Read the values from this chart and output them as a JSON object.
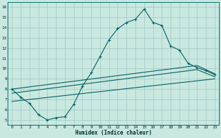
{
  "xlabel": "Humidex (Indice chaleur)",
  "bg_color": "#c8e8e0",
  "line_color": "#006060",
  "grid_color": "#a8ccc8",
  "xlim": [
    -0.5,
    23.5
  ],
  "ylim": [
    4.5,
    16.5
  ],
  "xticks": [
    0,
    1,
    2,
    3,
    4,
    5,
    6,
    7,
    8,
    9,
    10,
    11,
    12,
    13,
    14,
    15,
    16,
    17,
    18,
    19,
    20,
    21,
    22,
    23
  ],
  "yticks": [
    5,
    6,
    7,
    8,
    9,
    10,
    11,
    12,
    13,
    14,
    15,
    16
  ],
  "line1_x": [
    0,
    1,
    2,
    3,
    4,
    5,
    6,
    7,
    8,
    9,
    10,
    11,
    12,
    13,
    14,
    15,
    16,
    17,
    18,
    19,
    20,
    21,
    22,
    23
  ],
  "line1_y": [
    8.0,
    7.2,
    6.6,
    5.5,
    5.0,
    5.2,
    5.3,
    6.5,
    8.3,
    9.6,
    11.2,
    12.8,
    13.9,
    14.5,
    14.8,
    15.8,
    14.5,
    14.2,
    12.2,
    11.8,
    10.5,
    10.1,
    9.8,
    9.4
  ],
  "line2_x": [
    0,
    21,
    23
  ],
  "line2_y": [
    8.0,
    10.3,
    9.5
  ],
  "line3_x": [
    0,
    21,
    23
  ],
  "line3_y": [
    7.6,
    9.9,
    9.2
  ],
  "line4_x": [
    0,
    23
  ],
  "line4_y": [
    6.8,
    9.0
  ]
}
